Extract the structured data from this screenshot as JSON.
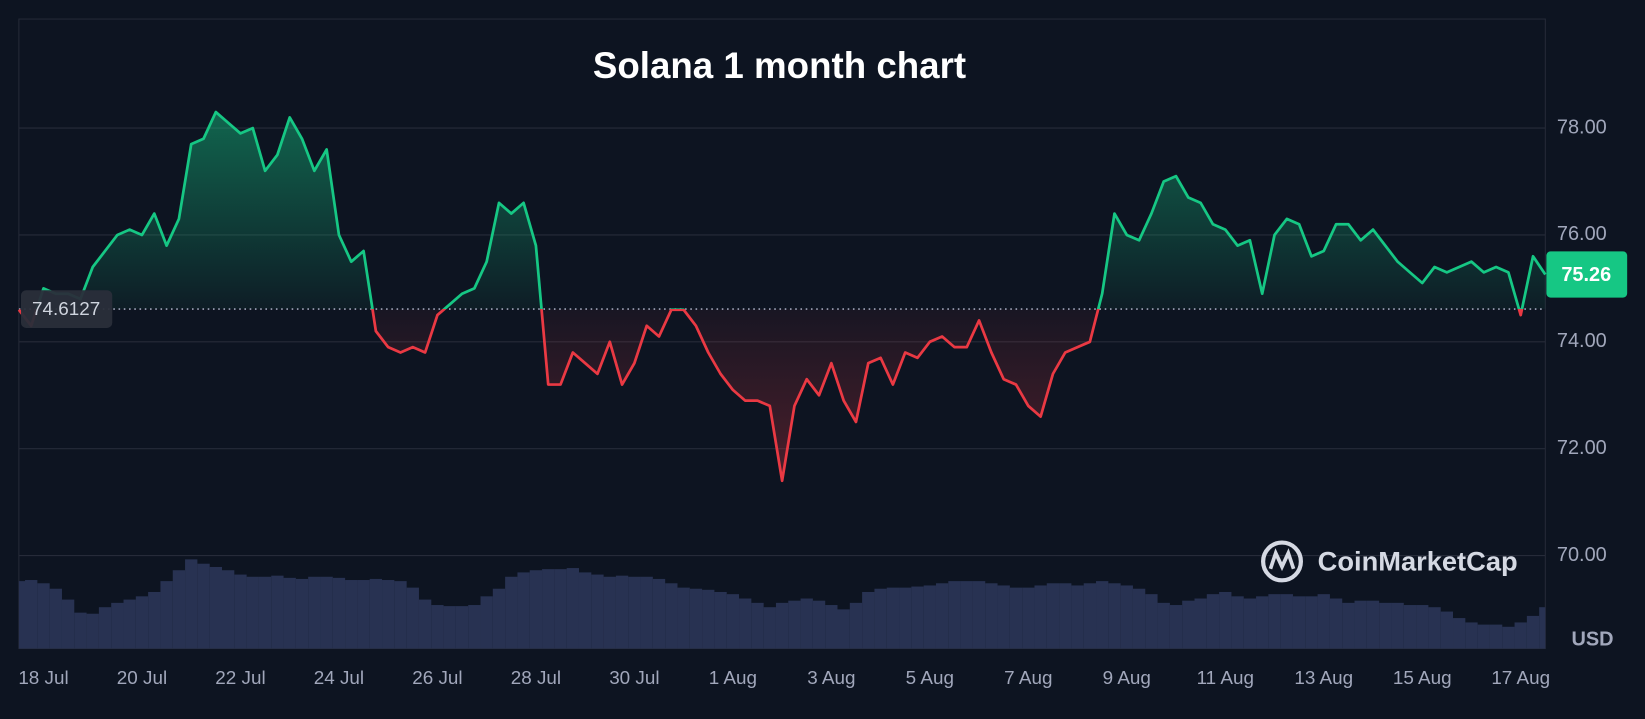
{
  "chart_data": {
    "type": "baseline-area",
    "title": "Solana 1 month chart",
    "currency": "USD",
    "watermark": "CoinMarketCap",
    "baseline": 74.6127,
    "ylim": [
      68.26,
      80.04
    ],
    "yticks": [
      {
        "value": 70,
        "label": "70.00"
      },
      {
        "value": 72,
        "label": "72.00"
      },
      {
        "value": 74,
        "label": "74.00"
      },
      {
        "value": 76,
        "label": "76.00"
      },
      {
        "value": 78,
        "label": "78.00"
      }
    ],
    "grid": true,
    "up_color": "#16c784",
    "down_color": "#ea3943",
    "volume_color": "#283252",
    "categories": [
      null,
      null,
      "18 Jul",
      null,
      null,
      null,
      null,
      null,
      null,
      null,
      "20 Jul",
      null,
      null,
      null,
      null,
      null,
      null,
      null,
      "22 Jul",
      null,
      null,
      null,
      null,
      null,
      null,
      null,
      "24 Jul",
      null,
      null,
      null,
      null,
      null,
      null,
      null,
      "26 Jul",
      null,
      null,
      null,
      null,
      null,
      null,
      null,
      "28 Jul",
      null,
      null,
      null,
      null,
      null,
      null,
      null,
      "30 Jul",
      null,
      null,
      null,
      null,
      null,
      null,
      null,
      "1 Aug",
      null,
      null,
      null,
      null,
      null,
      null,
      null,
      "3 Aug",
      null,
      null,
      null,
      null,
      null,
      null,
      null,
      "5 Aug",
      null,
      null,
      null,
      null,
      null,
      null,
      null,
      "7 Aug",
      null,
      null,
      null,
      null,
      null,
      null,
      null,
      "9 Aug",
      null,
      null,
      null,
      null,
      null,
      null,
      null,
      "11 Aug",
      null,
      null,
      null,
      null,
      null,
      null,
      null,
      "13 Aug",
      null,
      null,
      null,
      null,
      null,
      null,
      null,
      "15 Aug",
      null,
      null,
      null,
      null,
      null,
      null,
      null,
      "17 Aug",
      null,
      null
    ],
    "values": [
      74.6,
      74.3,
      75.0,
      74.9,
      74.9,
      74.8,
      75.4,
      75.7,
      76.0,
      76.1,
      76.0,
      76.4,
      75.8,
      76.3,
      77.7,
      77.8,
      78.3,
      78.1,
      77.9,
      78.0,
      77.2,
      77.5,
      78.2,
      77.8,
      77.2,
      77.6,
      76.0,
      75.5,
      75.7,
      74.2,
      73.9,
      73.8,
      73.9,
      73.8,
      74.5,
      74.7,
      74.9,
      75.0,
      75.5,
      76.6,
      76.4,
      76.6,
      75.8,
      73.2,
      73.2,
      73.8,
      73.6,
      73.4,
      74.0,
      73.2,
      73.6,
      74.3,
      74.1,
      74.6,
      74.6,
      74.3,
      73.8,
      73.4,
      73.1,
      72.9,
      72.9,
      72.8,
      71.4,
      72.8,
      73.3,
      73.0,
      73.6,
      72.9,
      72.5,
      73.6,
      73.7,
      73.2,
      73.8,
      73.7,
      74.0,
      74.1,
      73.9,
      73.9,
      74.4,
      73.8,
      73.3,
      73.2,
      72.8,
      72.6,
      73.4,
      73.8,
      73.9,
      74.0,
      74.9,
      76.4,
      76.0,
      75.9,
      76.4,
      77.0,
      77.1,
      76.7,
      76.6,
      76.2,
      76.1,
      75.8,
      75.9,
      74.9,
      76.0,
      76.3,
      76.2,
      75.6,
      75.7,
      76.2,
      76.2,
      75.9,
      76.1,
      75.8,
      75.5,
      75.3,
      75.1,
      75.4,
      75.3,
      75.4,
      75.5,
      75.3,
      75.4,
      75.3,
      74.5,
      75.6,
      75.26
    ],
    "volume": [
      62,
      63,
      60,
      55,
      45,
      33,
      32,
      38,
      42,
      45,
      48,
      52,
      62,
      72,
      82,
      78,
      75,
      72,
      68,
      66,
      66,
      67,
      65,
      64,
      66,
      66,
      65,
      63,
      63,
      64,
      63,
      62,
      56,
      45,
      40,
      39,
      39,
      40,
      48,
      55,
      66,
      70,
      72,
      73,
      73,
      74,
      70,
      68,
      66,
      67,
      66,
      66,
      64,
      60,
      56,
      55,
      54,
      52,
      50,
      46,
      42,
      38,
      42,
      44,
      46,
      44,
      40,
      36,
      42,
      52,
      55,
      56,
      56,
      57,
      58,
      60,
      62,
      62,
      62,
      60,
      58,
      56,
      56,
      58,
      60,
      60,
      58,
      60,
      62,
      60,
      58,
      55,
      50,
      42,
      40,
      44,
      46,
      50,
      52,
      48,
      46,
      48,
      50,
      50,
      48,
      48,
      50,
      46,
      42,
      44,
      44,
      42,
      42,
      40,
      40,
      38,
      34,
      28,
      24,
      22,
      22,
      20,
      24,
      30,
      38
    ]
  }
}
